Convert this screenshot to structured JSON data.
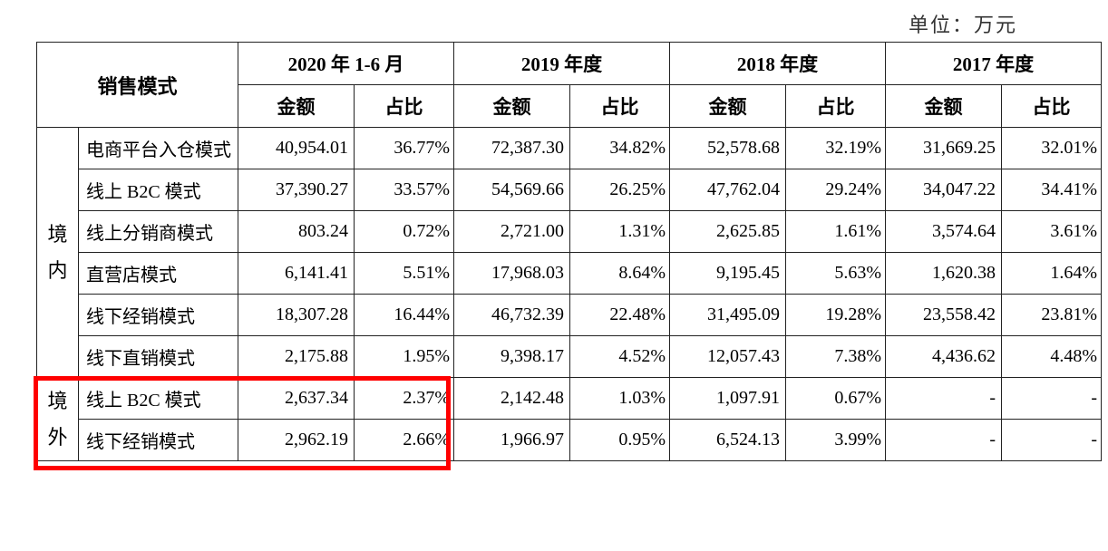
{
  "unit": "单位：万元",
  "header": {
    "sales_mode": "销售模式",
    "periods": [
      "2020 年 1-6 月",
      "2019 年度",
      "2018 年度",
      "2017 年度"
    ],
    "sub": {
      "amount": "金额",
      "ratio": "占比"
    }
  },
  "regions": {
    "domestic": "境内",
    "overseas": "境外"
  },
  "rows": {
    "domestic": [
      {
        "mode": "电商平台入仓模式",
        "data": [
          [
            "40,954.01",
            "36.77%"
          ],
          [
            "72,387.30",
            "34.82%"
          ],
          [
            "52,578.68",
            "32.19%"
          ],
          [
            "31,669.25",
            "32.01%"
          ]
        ]
      },
      {
        "mode": "线上 B2C 模式",
        "data": [
          [
            "37,390.27",
            "33.57%"
          ],
          [
            "54,569.66",
            "26.25%"
          ],
          [
            "47,762.04",
            "29.24%"
          ],
          [
            "34,047.22",
            "34.41%"
          ]
        ]
      },
      {
        "mode": "线上分销商模式",
        "data": [
          [
            "803.24",
            "0.72%"
          ],
          [
            "2,721.00",
            "1.31%"
          ],
          [
            "2,625.85",
            "1.61%"
          ],
          [
            "3,574.64",
            "3.61%"
          ]
        ]
      },
      {
        "mode": "直营店模式",
        "data": [
          [
            "6,141.41",
            "5.51%"
          ],
          [
            "17,968.03",
            "8.64%"
          ],
          [
            "9,195.45",
            "5.63%"
          ],
          [
            "1,620.38",
            "1.64%"
          ]
        ]
      },
      {
        "mode": "线下经销模式",
        "data": [
          [
            "18,307.28",
            "16.44%"
          ],
          [
            "46,732.39",
            "22.48%"
          ],
          [
            "31,495.09",
            "19.28%"
          ],
          [
            "23,558.42",
            "23.81%"
          ]
        ]
      },
      {
        "mode": "线下直销模式",
        "data": [
          [
            "2,175.88",
            "1.95%"
          ],
          [
            "9,398.17",
            "4.52%"
          ],
          [
            "12,057.43",
            "7.38%"
          ],
          [
            "4,436.62",
            "4.48%"
          ]
        ]
      }
    ],
    "overseas": [
      {
        "mode": "线上 B2C 模式",
        "data": [
          [
            "2,637.34",
            "2.37%"
          ],
          [
            "2,142.48",
            "1.03%"
          ],
          [
            "1,097.91",
            "0.67%"
          ],
          [
            "-",
            "-"
          ]
        ]
      },
      {
        "mode": "线下经销模式",
        "data": [
          [
            "2,962.19",
            "2.66%"
          ],
          [
            "1,966.97",
            "0.95%"
          ],
          [
            "6,524.13",
            "3.99%"
          ],
          [
            "-",
            "-"
          ]
        ]
      }
    ]
  },
  "style": {
    "highlight_border_color": "#ff0000",
    "border_color": "#222222",
    "text_color": "#000000",
    "bg_color": "#ffffff",
    "font_family": "SimSun",
    "cell_fontsize": 20,
    "header_fontsize": 21
  }
}
